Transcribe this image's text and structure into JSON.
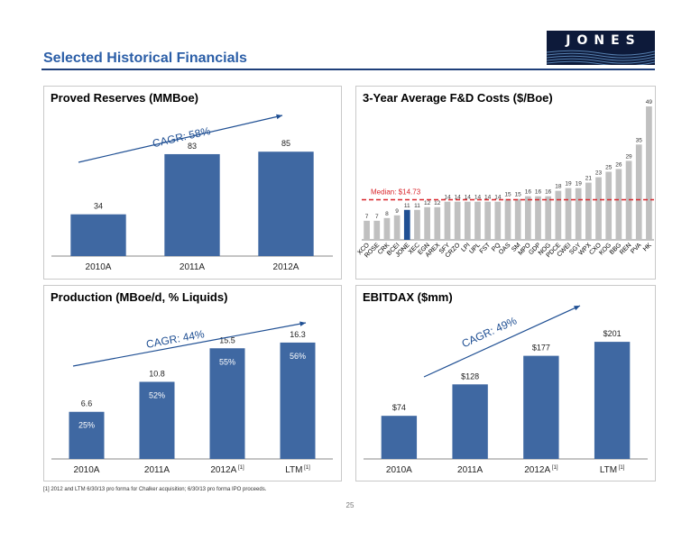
{
  "header": {
    "title": "Selected Historical Financials",
    "logo_text": "JONES"
  },
  "chart_data": [
    {
      "type": "bar",
      "title": "Proved Reserves (MMBoe)",
      "categories": [
        "2010A",
        "2011A",
        "2012A"
      ],
      "values": [
        34,
        83,
        85
      ],
      "value_labels": [
        "34",
        "83",
        "85"
      ],
      "annotation": "CAGR: 58%",
      "color": "#3f68a2"
    },
    {
      "type": "bar",
      "title": "3-Year Average F&D Costs ($/Boe)",
      "categories": [
        "XCO",
        "ROSE",
        "CRK",
        "BCEI",
        "JONE",
        "XEC",
        "EGN",
        "AREX",
        "SFY",
        "CRZO",
        "LPI",
        "UPL",
        "FST",
        "PQ",
        "OAS",
        "SM",
        "MPO",
        "GDP",
        "NOG",
        "PDCE",
        "CWEI",
        "SGY",
        "WPX",
        "CXO",
        "KOG",
        "BBG",
        "REN",
        "PVA",
        "HK"
      ],
      "values": [
        7,
        7,
        8,
        9,
        11,
        11,
        12,
        12,
        14,
        14,
        14,
        14,
        14,
        14,
        15,
        15,
        16,
        16,
        16,
        18,
        19,
        19,
        21,
        23,
        25,
        26,
        29,
        35,
        49
      ],
      "value_labels": [
        "7",
        "7",
        "8",
        "9",
        "11",
        "11",
        "12",
        "12",
        "14",
        "14",
        "14",
        "14",
        "14",
        "14",
        "15",
        "15",
        "16",
        "16",
        "16",
        "18",
        "19",
        "19",
        "21",
        "23",
        "25",
        "26",
        "29",
        "35",
        "49"
      ],
      "highlight": "JONE",
      "median_label": "Median: $14.73",
      "median_value": 14.73,
      "colors": {
        "bar": "#c0c0c0",
        "highlight": "#1f4f93",
        "median": "#d9262c"
      }
    },
    {
      "type": "bar",
      "title": "Production (MBoe/d, % Liquids)",
      "categories": [
        "2010A",
        "2011A",
        "2012A",
        "LTM"
      ],
      "category_notes": [
        "",
        "",
        "[1]",
        "[1]"
      ],
      "values": [
        6.6,
        10.8,
        15.5,
        16.3
      ],
      "value_labels": [
        "6.6",
        "10.8",
        "15.5",
        "16.3"
      ],
      "inner_labels": [
        "25%",
        "52%",
        "55%",
        "56%"
      ],
      "annotation": "CAGR: 44%",
      "color": "#3f68a2"
    },
    {
      "type": "bar",
      "title": "EBITDAX ($mm)",
      "categories": [
        "2010A",
        "2011A",
        "2012A",
        "LTM"
      ],
      "category_notes": [
        "",
        "",
        "[1]",
        "[1]"
      ],
      "values": [
        74,
        128,
        177,
        201
      ],
      "value_labels": [
        "$74",
        "$128",
        "$177",
        "$201"
      ],
      "annotation": "CAGR: 49%",
      "color": "#3f68a2"
    }
  ],
  "footnote": "[1]  2012 and LTM 6/30/13 pro forma for Chalker acquisition; 6/30/13 pro forma IPO proceeds.",
  "page_number": "25"
}
